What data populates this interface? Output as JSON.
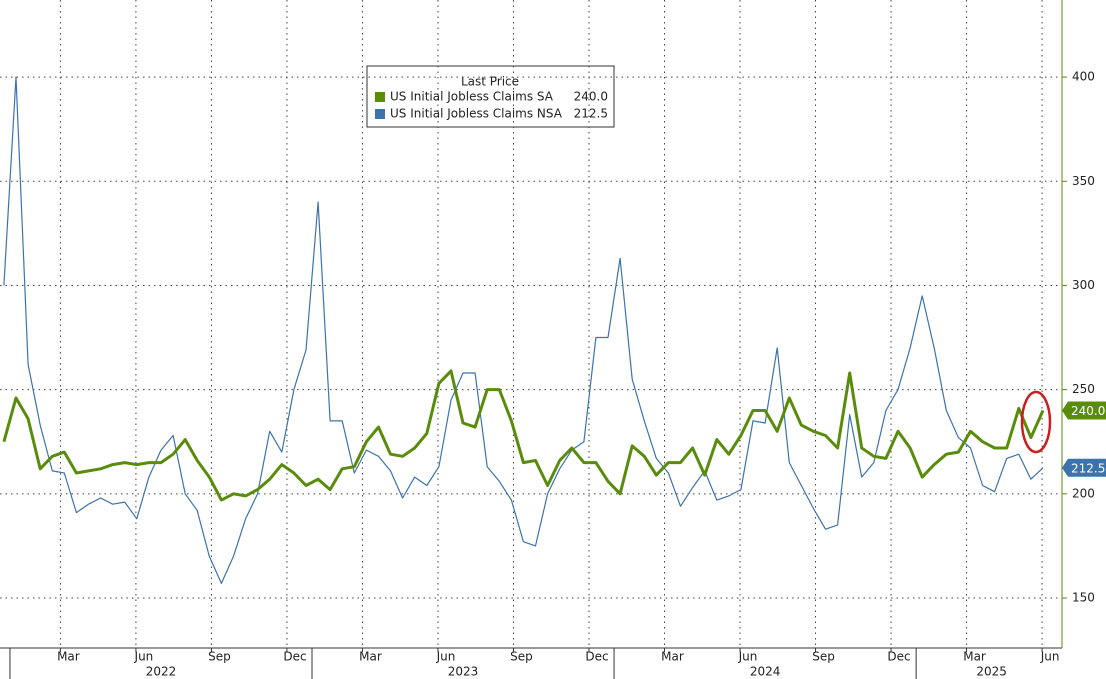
{
  "chart_data": {
    "type": "line",
    "legend_title": "Last Price",
    "x": [
      2021.98,
      2022.02,
      2022.06,
      2022.1,
      2022.14,
      2022.18,
      2022.22,
      2022.26,
      2022.3,
      2022.34,
      2022.38,
      2022.42,
      2022.46,
      2022.5,
      2022.54,
      2022.58,
      2022.62,
      2022.66,
      2022.7,
      2022.74,
      2022.78,
      2022.82,
      2022.86,
      2022.9,
      2022.94,
      2022.98,
      2023.02,
      2023.06,
      2023.1,
      2023.14,
      2023.18,
      2023.22,
      2023.26,
      2023.3,
      2023.34,
      2023.38,
      2023.42,
      2023.46,
      2023.5,
      2023.54,
      2023.58,
      2023.62,
      2023.66,
      2023.7,
      2023.74,
      2023.78,
      2023.82,
      2023.86,
      2023.9,
      2023.94,
      2023.98,
      2024.02,
      2024.06,
      2024.1,
      2024.14,
      2024.18,
      2024.22,
      2024.26,
      2024.3,
      2024.34,
      2024.38,
      2024.42,
      2024.46,
      2024.5,
      2024.54,
      2024.58,
      2024.62,
      2024.66,
      2024.7,
      2024.74,
      2024.78,
      2024.82,
      2024.86,
      2024.9,
      2024.94,
      2024.98,
      2025.02,
      2025.06,
      2025.1,
      2025.14,
      2025.18,
      2025.22,
      2025.26,
      2025.3,
      2025.34,
      2025.38,
      2025.42
    ],
    "series": [
      {
        "name": "US Initial Jobless Claims SA",
        "color": "#5a8c0c",
        "last_label": "240.0",
        "values": [
          225,
          246,
          236,
          212,
          218,
          220,
          210,
          211,
          212,
          214,
          215,
          214,
          215,
          215,
          219,
          226,
          216,
          208,
          197,
          200,
          199,
          202,
          207,
          214,
          210,
          204,
          207,
          202,
          212,
          213,
          225,
          232,
          219,
          218,
          222,
          229,
          253,
          259,
          234,
          232,
          250,
          250,
          235,
          215,
          216,
          204,
          216,
          222,
          215,
          215,
          206,
          200,
          223,
          218,
          209,
          215,
          215,
          222,
          209,
          226,
          219,
          228,
          240,
          240,
          230,
          246,
          233,
          230,
          228,
          222,
          258,
          222,
          218,
          217,
          230,
          222,
          208,
          214,
          219,
          220,
          230,
          225,
          222,
          222,
          241,
          227,
          240
        ]
      },
      {
        "name": "US Initial Jobless Claims NSA",
        "color": "#3b73ad",
        "last_label": "212.5",
        "values": [
          300,
          400,
          262,
          233,
          211,
          210,
          191,
          195,
          198,
          195,
          196,
          188,
          208,
          221,
          228,
          200,
          192,
          170,
          157,
          170,
          188,
          200,
          230,
          220,
          250,
          269,
          340,
          235,
          235,
          210,
          221,
          218,
          211,
          198,
          208,
          204,
          213,
          245,
          258,
          258,
          213,
          206,
          197,
          177,
          175,
          200,
          212,
          221,
          225,
          275,
          275,
          313,
          255,
          235,
          217,
          210,
          194,
          203,
          211,
          197,
          199,
          202,
          235,
          234,
          270,
          215,
          204,
          193,
          183,
          185,
          238,
          208,
          215,
          240,
          250,
          270,
          295,
          270,
          240,
          227,
          222,
          204,
          201,
          217,
          219,
          207,
          212.5
        ]
      }
    ],
    "xlim": [
      2021.967,
      2025.483
    ],
    "xticks": [
      {
        "value": 2022.167,
        "label": "Mar"
      },
      {
        "value": 2022.417,
        "label": "Jun"
      },
      {
        "value": 2022.667,
        "label": "Sep"
      },
      {
        "value": 2022.917,
        "label": "Dec"
      },
      {
        "value": 2023.167,
        "label": "Mar"
      },
      {
        "value": 2023.417,
        "label": "Jun"
      },
      {
        "value": 2023.667,
        "label": "Sep"
      },
      {
        "value": 2023.917,
        "label": "Dec"
      },
      {
        "value": 2024.167,
        "label": "Mar"
      },
      {
        "value": 2024.417,
        "label": "Jun"
      },
      {
        "value": 2024.667,
        "label": "Sep"
      },
      {
        "value": 2024.917,
        "label": "Dec"
      },
      {
        "value": 2025.167,
        "label": "Mar"
      },
      {
        "value": 2025.417,
        "label": "Jun"
      }
    ],
    "year_ticks": [
      {
        "value": 2022.5,
        "label": "2022"
      },
      {
        "value": 2023.5,
        "label": "2023"
      },
      {
        "value": 2024.5,
        "label": "2024"
      },
      {
        "value": 2025.25,
        "label": "2025"
      }
    ],
    "ylim": [
      126,
      437
    ],
    "yticks": [
      150,
      200,
      250,
      300,
      350,
      400
    ],
    "grid": true
  }
}
